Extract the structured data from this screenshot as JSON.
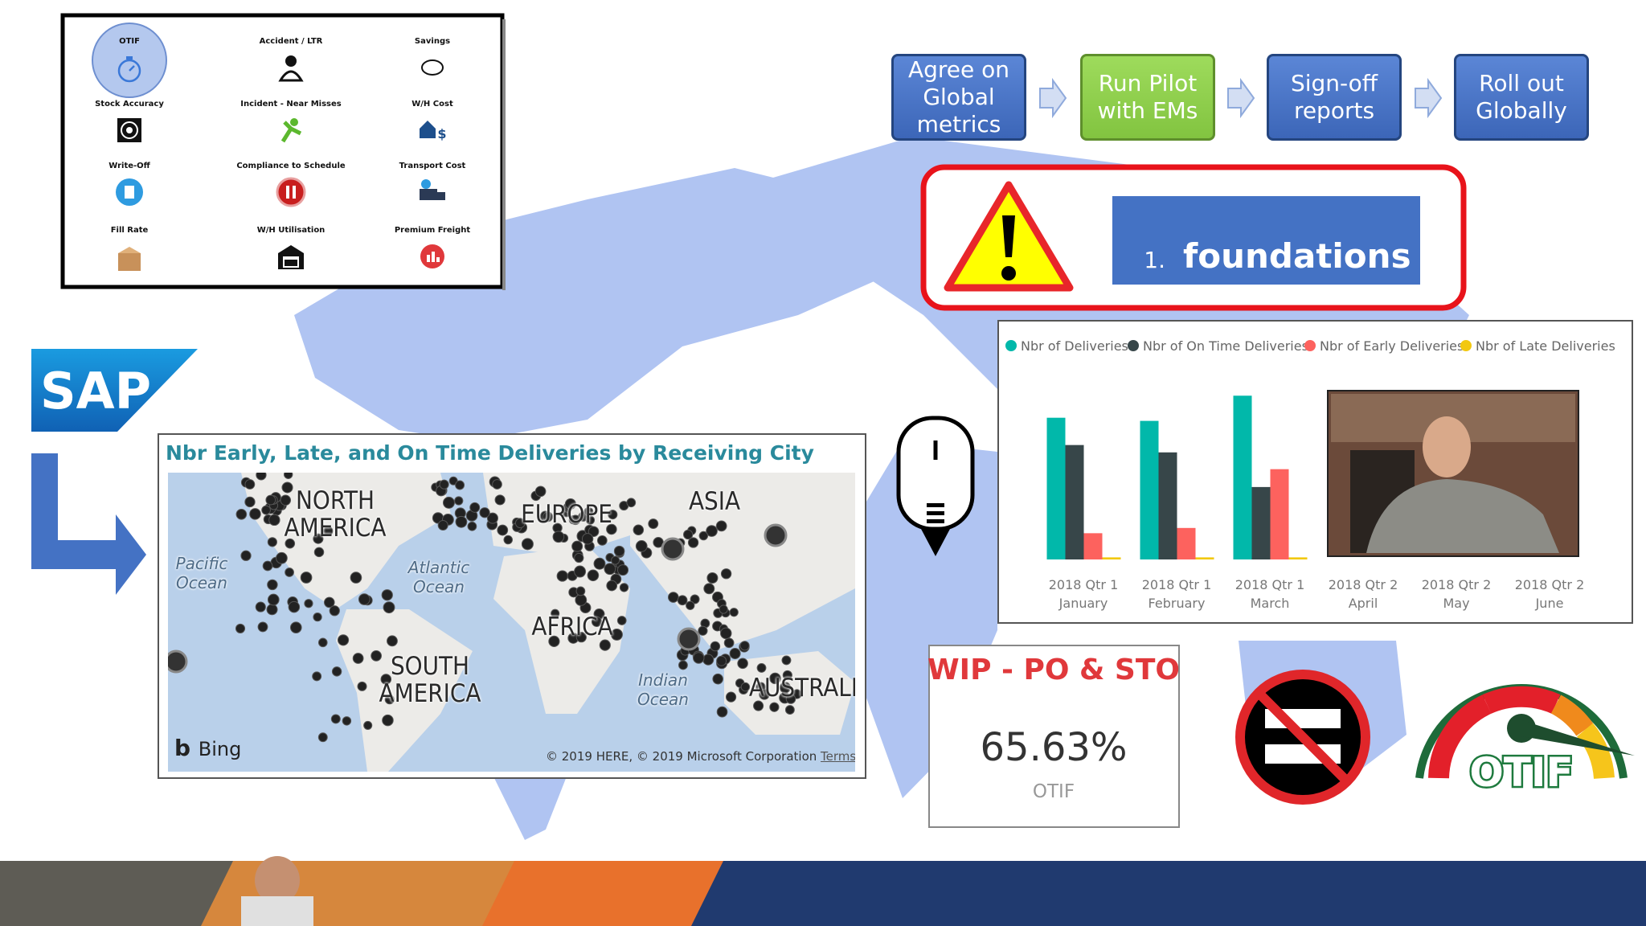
{
  "kpi_grid": {
    "items": [
      "OTIF",
      "Accident / LTR",
      "Savings",
      "Stock Accuracy",
      "Incident - Near Misses",
      "W/H Cost",
      "Write-Off",
      "Compliance to Schedule",
      "Transport Cost",
      "Fill Rate",
      "W/H Utilisation",
      "Premium Freight"
    ]
  },
  "process": {
    "steps": [
      "Agree on Global metrics",
      "Run Pilot with EMs",
      "Sign-off reports",
      "Roll out Globally"
    ]
  },
  "banner": {
    "number": "1.",
    "text": "foundations"
  },
  "sap_logo": {
    "text": "SAP"
  },
  "map": {
    "title": "Nbr Early, Late, and On Time Deliveries by Receiving City",
    "labels": [
      "NORTH AMERICA",
      "EUROPE",
      "ASIA",
      "AFRICA",
      "SOUTH AMERICA",
      "AUSTRALIA",
      "Pacific Ocean",
      "Atlantic Ocean",
      "Indian Ocean"
    ],
    "provider": "Bing",
    "copyright": "© 2019 HERE, © 2019 Microsoft Corporation",
    "terms": "Terms"
  },
  "kpi_card": {
    "title": "WIP - PO & STO",
    "value": "65.63%",
    "label": "OTIF"
  },
  "otif_logo": {
    "text": "OTIF"
  },
  "chart_data": {
    "type": "bar",
    "categories": [
      [
        "2018 Qtr 1",
        "January"
      ],
      [
        "2018 Qtr 1",
        "February"
      ],
      [
        "2018 Qtr 1",
        "March"
      ],
      [
        "2018 Qtr 2",
        "April"
      ],
      [
        "2018 Qtr 2",
        "May"
      ],
      [
        "2018 Qtr 2",
        "June"
      ]
    ],
    "series": [
      {
        "name": "Nbr of Deliveries",
        "color": "#01b8aa",
        "values": [
          135,
          132,
          156,
          null,
          null,
          null
        ]
      },
      {
        "name": "Nbr of On Time Deliveries",
        "color": "#374649",
        "values": [
          109,
          102,
          69,
          null,
          null,
          null
        ]
      },
      {
        "name": "Nbr of Early Deliveries",
        "color": "#fd625e",
        "values": [
          25,
          30,
          86,
          null,
          null,
          null
        ]
      },
      {
        "name": "Nbr of Late Deliveries",
        "color": "#f2c80f",
        "values": [
          2,
          2,
          2,
          null,
          null,
          null
        ]
      }
    ]
  }
}
